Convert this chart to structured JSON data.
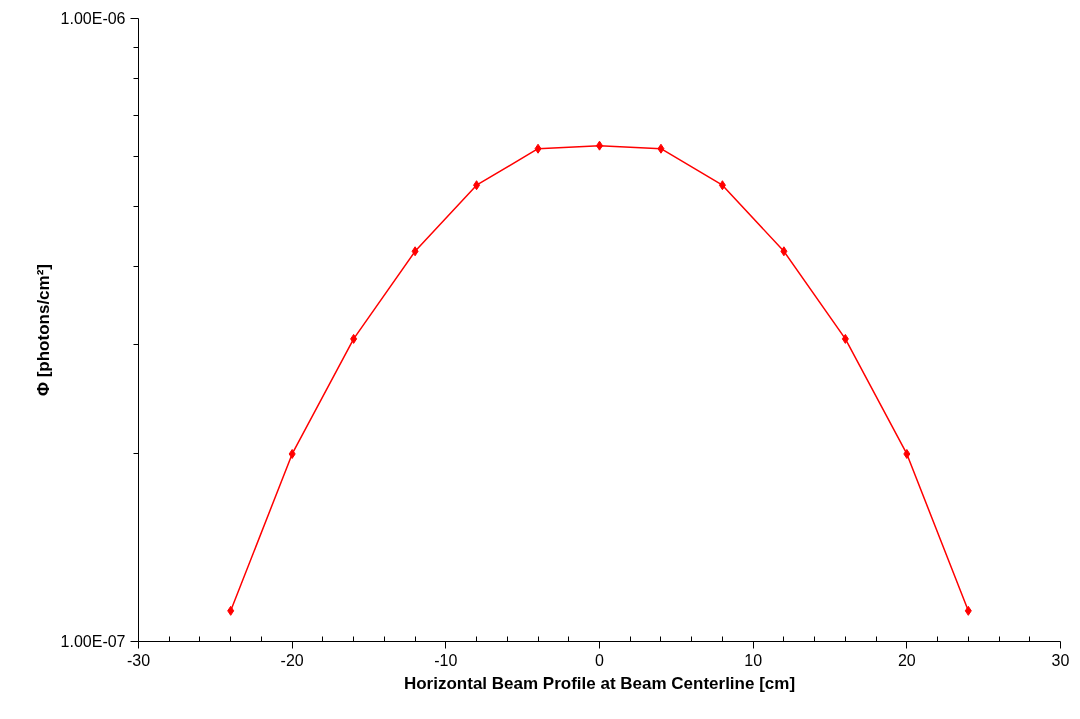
{
  "chart_data": {
    "type": "line",
    "xlabel": "Horizontal Beam Profile at Beam Centerline [cm]",
    "ylabel": "Φ [photons/cm²]",
    "x": [
      -24,
      -20,
      -16,
      -12,
      -8,
      -4,
      0,
      4,
      8,
      12,
      16,
      20,
      24
    ],
    "series": [
      {
        "color": "#ff0000",
        "values": [
          1.12e-07,
          2e-07,
          3.06e-07,
          4.23e-07,
          5.4e-07,
          6.18e-07,
          6.25e-07,
          6.18e-07,
          5.4e-07,
          4.23e-07,
          3.06e-07,
          2e-07,
          1.12e-07
        ]
      }
    ],
    "log": "y",
    "xlim": [
      -30,
      30
    ],
    "ylim": [
      1e-07,
      1e-06
    ],
    "xticks": [
      -30,
      {
        "value": -28,
        "label": null
      },
      {
        "value": -26,
        "label": null
      },
      {
        "value": -24,
        "label": null
      },
      {
        "value": -22,
        "label": null
      },
      -20,
      {
        "value": -18,
        "label": null
      },
      {
        "value": -16,
        "label": null
      },
      {
        "value": -14,
        "label": null
      },
      {
        "value": -12,
        "label": null
      },
      -10,
      {
        "value": -8,
        "label": null
      },
      {
        "value": -6,
        "label": null
      },
      {
        "value": -4,
        "label": null
      },
      {
        "value": -2,
        "label": null
      },
      0,
      {
        "value": 2,
        "label": null
      },
      {
        "value": 4,
        "label": null
      },
      {
        "value": 6,
        "label": null
      },
      {
        "value": 8,
        "label": null
      },
      10,
      {
        "value": 12,
        "label": null
      },
      {
        "value": 14,
        "label": null
      },
      {
        "value": 16,
        "label": null
      },
      {
        "value": 18,
        "label": null
      },
      20,
      {
        "value": 22,
        "label": null
      },
      {
        "value": 24,
        "label": null
      },
      {
        "value": 26,
        "label": null
      },
      {
        "value": 28,
        "label": null
      },
      30
    ],
    "yticks": [
      {
        "value": 1e-07,
        "label": "1.00E-07"
      },
      {
        "value": 2e-07,
        "label": null
      },
      {
        "value": 3e-07,
        "label": null
      },
      {
        "value": 4e-07,
        "label": null
      },
      {
        "value": 5e-07,
        "label": null
      },
      {
        "value": 6e-07,
        "label": null
      },
      {
        "value": 7e-07,
        "label": null
      },
      {
        "value": 8e-07,
        "label": null
      },
      {
        "value": 9e-07,
        "label": null
      },
      {
        "value": 1e-06,
        "label": "1.00E-06"
      }
    ],
    "marker": "diamond",
    "line_style": "solid"
  }
}
